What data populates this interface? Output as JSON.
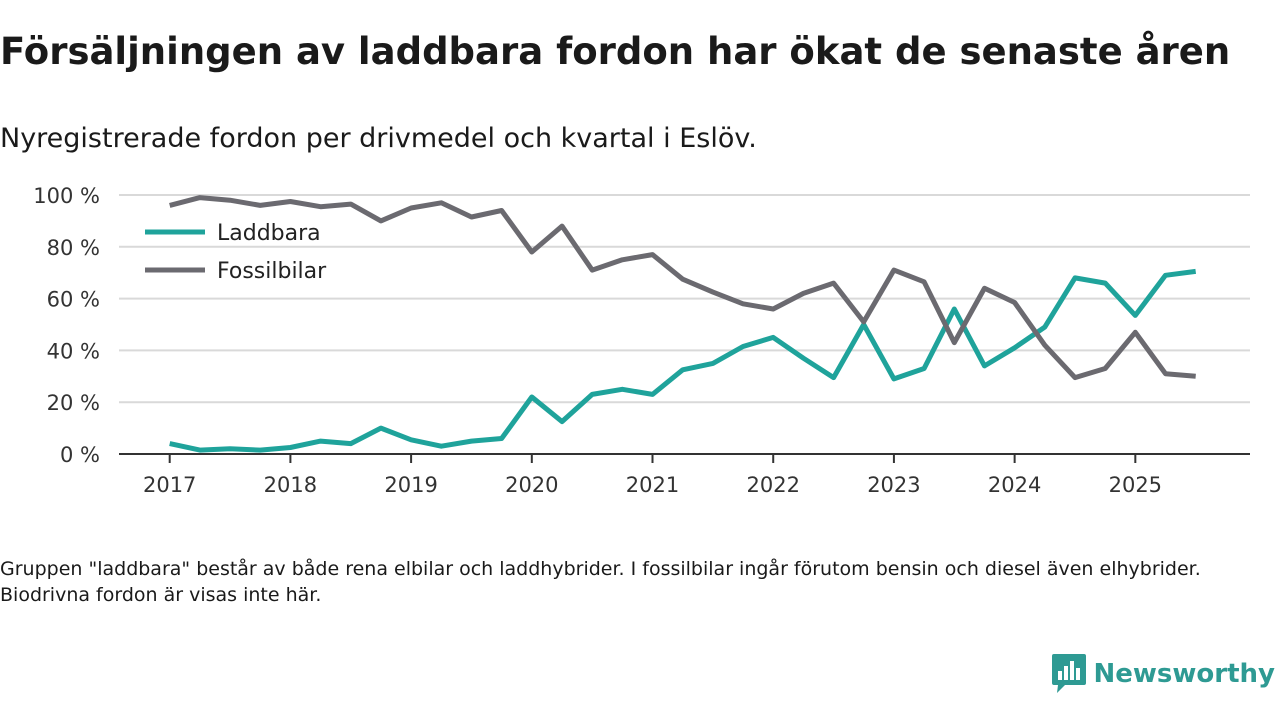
{
  "header": {
    "title": "Försäljningen av laddbara fordon har ökat de senaste åren",
    "subtitle": "Nyregistrerade fordon per drivmedel och kvartal i Eslöv."
  },
  "footer": {
    "note": "Gruppen \"laddbara\" består av både rena elbilar och laddhybrider. I fossilbilar ingår förutom bensin och diesel även elhybrider. Biodrivna fordon är visas inte här.",
    "brand": "Newsworthy",
    "brand_icon": "newsworthy-logo-icon"
  },
  "colors": {
    "laddbara": "#1fa39b",
    "fossil": "#6b6a70",
    "grid": "#d9d9d9",
    "axis": "#333333",
    "text": "#333333",
    "brand": "#2e9a93"
  },
  "chart_data": {
    "type": "line",
    "title": "Försäljningen av laddbara fordon har ökat de senaste åren",
    "subtitle": "Nyregistrerade fordon per drivmedel och kvartal i Eslöv.",
    "xlabel": "",
    "ylabel": "",
    "x_start": 2017,
    "x_step": 0.25,
    "xlim": [
      2016.58,
      2025.95
    ],
    "xticks": [
      2017,
      2018,
      2019,
      2020,
      2021,
      2022,
      2023,
      2024,
      2025
    ],
    "xtick_labels": [
      "2017",
      "2018",
      "2019",
      "2020",
      "2021",
      "2022",
      "2023",
      "2024",
      "2025"
    ],
    "ylim": [
      0,
      100
    ],
    "yticks": [
      0,
      20,
      40,
      60,
      80,
      100
    ],
    "ytick_labels": [
      "0 %",
      "20 %",
      "40 %",
      "60 %",
      "80 %",
      "100 %"
    ],
    "grid": true,
    "legend_position": "top-left",
    "series": [
      {
        "key": "laddbara",
        "name": "Laddbara",
        "values": [
          4,
          1.5,
          2,
          1.5,
          2.5,
          5,
          4,
          10,
          5.5,
          3,
          5,
          6,
          22,
          12.5,
          23,
          25,
          23,
          32.5,
          35,
          41.5,
          45,
          37,
          29.5,
          50,
          29,
          33,
          56,
          34,
          41,
          49,
          68,
          66,
          53.5,
          69,
          70.5
        ]
      },
      {
        "key": "fossil",
        "name": "Fossilbilar",
        "values": [
          96,
          99,
          98,
          96,
          97.5,
          95.5,
          96.5,
          90,
          95,
          97,
          91.5,
          94,
          78,
          88,
          71,
          75,
          77,
          67.5,
          62.5,
          58,
          56,
          62,
          66,
          51,
          71,
          66.5,
          43,
          64,
          58.5,
          42,
          29.5,
          33,
          47,
          31,
          30
        ]
      }
    ]
  }
}
